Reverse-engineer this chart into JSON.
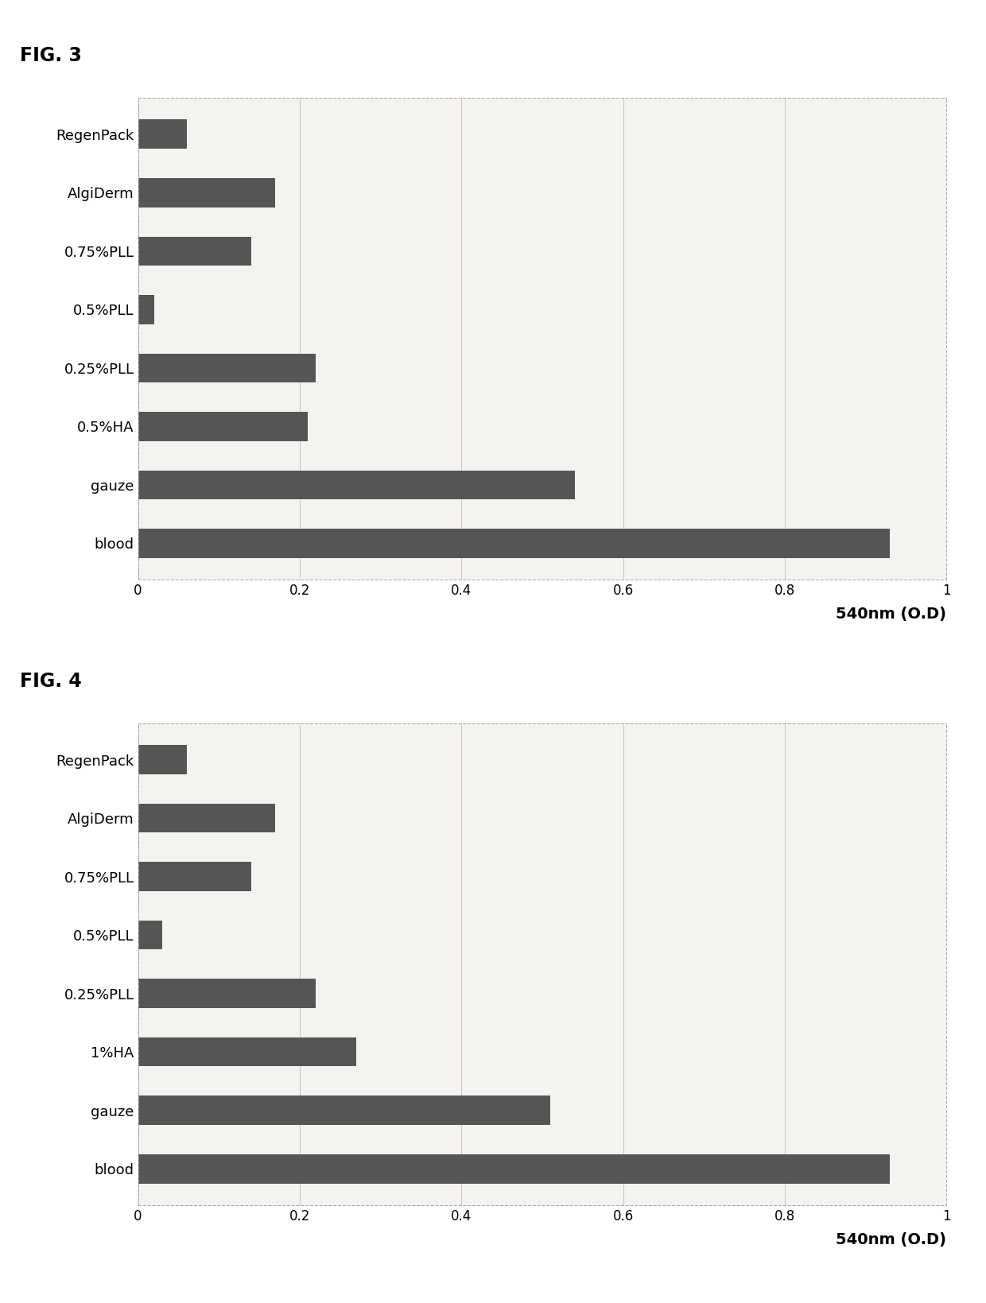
{
  "fig3": {
    "title": "FIG. 3",
    "categories": [
      "blood",
      "gauze",
      "0.5%HA",
      "0.25%PLL",
      "0.5%PLL",
      "0.75%PLL",
      "AlgiDerm",
      "RegenPack"
    ],
    "values": [
      0.93,
      0.54,
      0.21,
      0.22,
      0.02,
      0.14,
      0.17,
      0.06
    ],
    "xlabel": "540nm (O.D)",
    "xlim": [
      0,
      1
    ],
    "xticks": [
      0,
      0.2,
      0.4,
      0.6,
      0.8,
      1
    ],
    "xticklabels": [
      "0",
      "0.2",
      "0.4",
      "0.6",
      "0.8",
      "1"
    ]
  },
  "fig4": {
    "title": "FIG. 4",
    "categories": [
      "blood",
      "gauze",
      "1%HA",
      "0.25%PLL",
      "0.5%PLL",
      "0.75%PLL",
      "AlgiDerm",
      "RegenPack"
    ],
    "values": [
      0.93,
      0.51,
      0.27,
      0.22,
      0.03,
      0.14,
      0.17,
      0.06
    ],
    "xlabel": "540nm (O.D)",
    "xlim": [
      0,
      1
    ],
    "xticks": [
      0,
      0.2,
      0.4,
      0.6,
      0.8,
      1
    ],
    "xticklabels": [
      "0",
      "0.2",
      "0.4",
      "0.6",
      "0.8",
      "1"
    ]
  },
  "bar_color": "#555555",
  "bg_color": "#f5f3f0",
  "bar_height": 0.5,
  "title_fontsize": 17,
  "label_fontsize": 13,
  "tick_fontsize": 12,
  "xlabel_fontsize": 14,
  "fig_width": 12.4,
  "fig_height": 16.39,
  "dpi": 100
}
